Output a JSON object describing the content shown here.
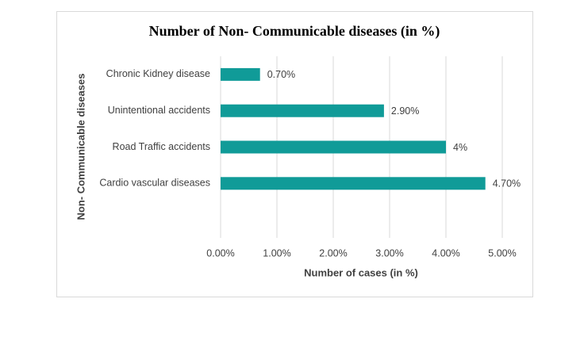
{
  "chart_data": {
    "type": "hbar",
    "title": "Number of Non- Communicable diseases (in %)",
    "x_label": "Number of cases (in %)",
    "y_label": "Non- Communicable diseases",
    "categories": [
      "Chronic Kidney disease",
      "Unintentional accidents",
      "Road Traffic accidents",
      "Cardio vascular diseases",
      null
    ],
    "values": [
      0.7,
      2.9,
      4,
      4.7,
      null
    ],
    "value_labels": [
      "0.70%",
      "2.90%",
      "4%",
      "4.70%",
      null
    ],
    "color": "#109b98",
    "xlim": [
      0,
      5
    ],
    "xticks": [
      {
        "value": 0,
        "label": "0.00%"
      },
      {
        "value": 1,
        "label": "1.00%"
      },
      {
        "value": 2,
        "label": "2.00%"
      },
      {
        "value": 3,
        "label": "3.00%"
      },
      {
        "value": 4,
        "label": "4.00%"
      },
      {
        "value": 5,
        "label": "5.00%"
      }
    ],
    "grid": true
  }
}
